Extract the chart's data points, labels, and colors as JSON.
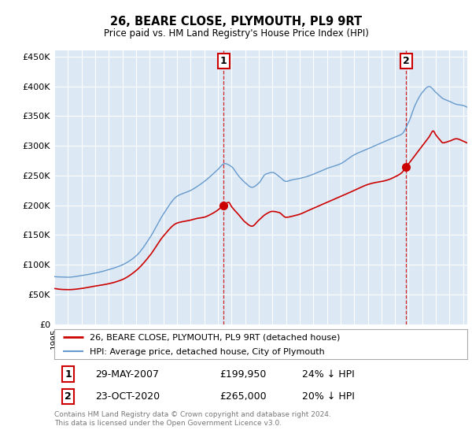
{
  "title": "26, BEARE CLOSE, PLYMOUTH, PL9 9RT",
  "subtitle": "Price paid vs. HM Land Registry's House Price Index (HPI)",
  "ylabel_ticks": [
    "£0",
    "£50K",
    "£100K",
    "£150K",
    "£200K",
    "£250K",
    "£300K",
    "£350K",
    "£400K",
    "£450K"
  ],
  "ytick_values": [
    0,
    50000,
    100000,
    150000,
    200000,
    250000,
    300000,
    350000,
    400000,
    450000
  ],
  "ylim": [
    0,
    460000
  ],
  "xlim_start": 1995.0,
  "xlim_end": 2025.3,
  "transaction1": {
    "date_x": 2007.41,
    "price": 199950,
    "label": "1"
  },
  "transaction2": {
    "date_x": 2020.81,
    "price": 265000,
    "label": "2"
  },
  "legend_line1": "26, BEARE CLOSE, PLYMOUTH, PL9 9RT (detached house)",
  "legend_line2": "HPI: Average price, detached house, City of Plymouth",
  "table_row1_num": "1",
  "table_row1_date": "29-MAY-2007",
  "table_row1_price": "£199,950",
  "table_row1_hpi": "24% ↓ HPI",
  "table_row2_num": "2",
  "table_row2_date": "23-OCT-2020",
  "table_row2_price": "£265,000",
  "table_row2_hpi": "20% ↓ HPI",
  "footnote1": "Contains HM Land Registry data © Crown copyright and database right 2024.",
  "footnote2": "This data is licensed under the Open Government Licence v3.0.",
  "line_red_color": "#cc0000",
  "line_blue_color": "#6699cc",
  "background_color": "#dce9f5",
  "grid_color": "#ffffff",
  "box_color": "#cc0000",
  "legend_border_color": "#aaaaaa",
  "footnote_color": "#777777"
}
